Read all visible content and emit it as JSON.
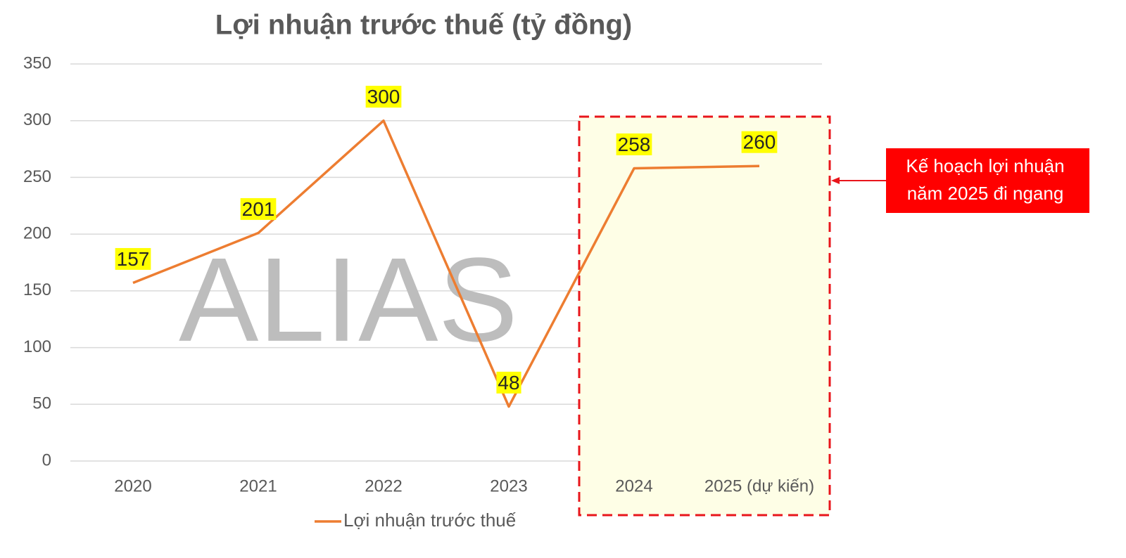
{
  "chart_data": {
    "type": "line",
    "title": "Lợi nhuận trước thuế (tỷ đồng)",
    "categories": [
      "2020",
      "2021",
      "2022",
      "2023",
      "2024",
      "2025 (dự kiến)"
    ],
    "series": [
      {
        "name": "Lợi nhuận trước thuế",
        "color": "#ed7d31",
        "values": [
          157,
          201,
          300,
          48,
          258,
          260
        ]
      }
    ],
    "ylim": [
      0,
      350
    ],
    "yticks": [
      0,
      50,
      100,
      150,
      200,
      250,
      300,
      350
    ],
    "grid": true,
    "legend": "bottom",
    "watermark": "ALIAS",
    "annotation": [
      "Kế hoạch lợi nhuận",
      "năm 2025 đi ngang"
    ]
  }
}
